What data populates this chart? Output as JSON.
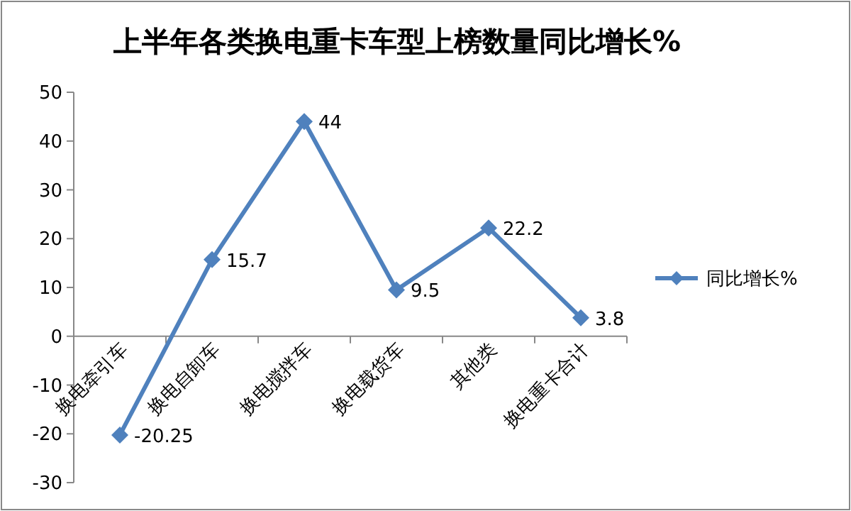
{
  "chart_data": {
    "type": "line",
    "title": "上半年各类换电重卡车型上榜数量同比增长%",
    "categories": [
      "换电牵引车",
      "换电自卸车",
      "换电搅拌车",
      "换电载货车",
      "其他类",
      "换电重卡合计"
    ],
    "series": [
      {
        "name": "同比增长%",
        "color": "#4f81bd",
        "values": [
          -20.25,
          15.7,
          44,
          9.5,
          22.2,
          3.8
        ]
      }
    ],
    "ylim": [
      -30,
      50
    ],
    "yticks": [
      -30,
      -20,
      -10,
      0,
      10,
      20,
      30,
      40,
      50
    ],
    "data_labels": true,
    "marker": "diamond",
    "legend": "right",
    "grid": false
  }
}
